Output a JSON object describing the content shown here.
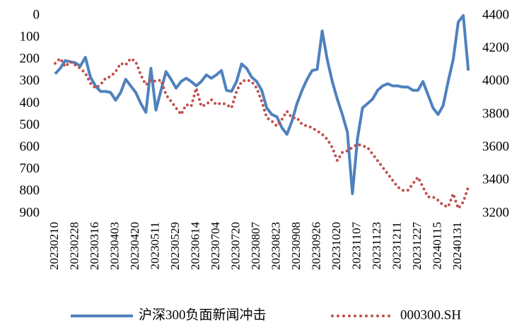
{
  "chart_data": {
    "type": "line",
    "categories": [
      "20230210",
      null,
      null,
      null,
      "20230228",
      null,
      null,
      null,
      "20230316",
      null,
      null,
      null,
      "20230403",
      null,
      null,
      null,
      "20230420",
      null,
      null,
      null,
      "20230511",
      null,
      null,
      null,
      "20230529",
      null,
      null,
      null,
      "20230614",
      null,
      null,
      null,
      "20230704",
      null,
      null,
      null,
      "20230720",
      null,
      null,
      null,
      "20230807",
      null,
      null,
      null,
      "20230823",
      null,
      null,
      null,
      "20230908",
      null,
      null,
      null,
      "20230926",
      null,
      null,
      null,
      "20231020",
      null,
      null,
      null,
      "20231107",
      null,
      null,
      null,
      "20231123",
      null,
      null,
      null,
      "20231211",
      null,
      null,
      null,
      "20231227",
      null,
      null,
      null,
      "20240115",
      null,
      null,
      null,
      "20240131",
      null,
      null
    ],
    "series": [
      {
        "name": "沪深300负面新闻冲击",
        "color": "#4f81bd",
        "axis": "y",
        "style": "solid",
        "values": [
          265,
          240,
          205,
          210,
          215,
          230,
          190,
          280,
          320,
          345,
          345,
          350,
          385,
          350,
          290,
          320,
          350,
          400,
          440,
          240,
          430,
          340,
          255,
          290,
          330,
          300,
          285,
          300,
          320,
          300,
          270,
          285,
          270,
          250,
          340,
          345,
          300,
          220,
          240,
          280,
          300,
          340,
          420,
          450,
          460,
          510,
          540,
          480,
          400,
          340,
          290,
          250,
          245,
          70,
          200,
          300,
          380,
          450,
          530,
          810,
          560,
          420,
          400,
          380,
          340,
          320,
          310,
          320,
          320,
          325,
          325,
          340,
          340,
          300,
          360,
          420,
          450,
          410,
          300,
          200,
          30,
          0,
          250
        ]
      },
      {
        "name": "000300.SH",
        "color": "#c0504d",
        "axis": "y2",
        "style": "dotted",
        "values": [
          4110,
          4140,
          4090,
          4120,
          4100,
          4080,
          4050,
          3990,
          3960,
          3980,
          4020,
          4030,
          4060,
          4110,
          4100,
          4140,
          4120,
          4040,
          3980,
          4010,
          4000,
          4010,
          3920,
          3880,
          3840,
          3800,
          3860,
          3850,
          3960,
          3850,
          3860,
          3890,
          3860,
          3870,
          3860,
          3840,
          3940,
          4000,
          4010,
          4000,
          3960,
          3880,
          3780,
          3760,
          3730,
          3770,
          3820,
          3780,
          3780,
          3740,
          3730,
          3720,
          3700,
          3680,
          3650,
          3600,
          3520,
          3570,
          3580,
          3600,
          3620,
          3610,
          3600,
          3560,
          3520,
          3480,
          3440,
          3400,
          3360,
          3340,
          3340,
          3380,
          3420,
          3360,
          3300,
          3300,
          3280,
          3250,
          3240,
          3320,
          3230,
          3270,
          3360
        ]
      }
    ],
    "ylim": [
      900,
      0
    ],
    "yticks": [
      0,
      100,
      200,
      300,
      400,
      500,
      600,
      700,
      800,
      900
    ],
    "y2lim": [
      3200,
      4400
    ],
    "y2ticks": [
      3200,
      3400,
      3600,
      3800,
      4000,
      4200,
      4400
    ],
    "legend": "bottom"
  }
}
